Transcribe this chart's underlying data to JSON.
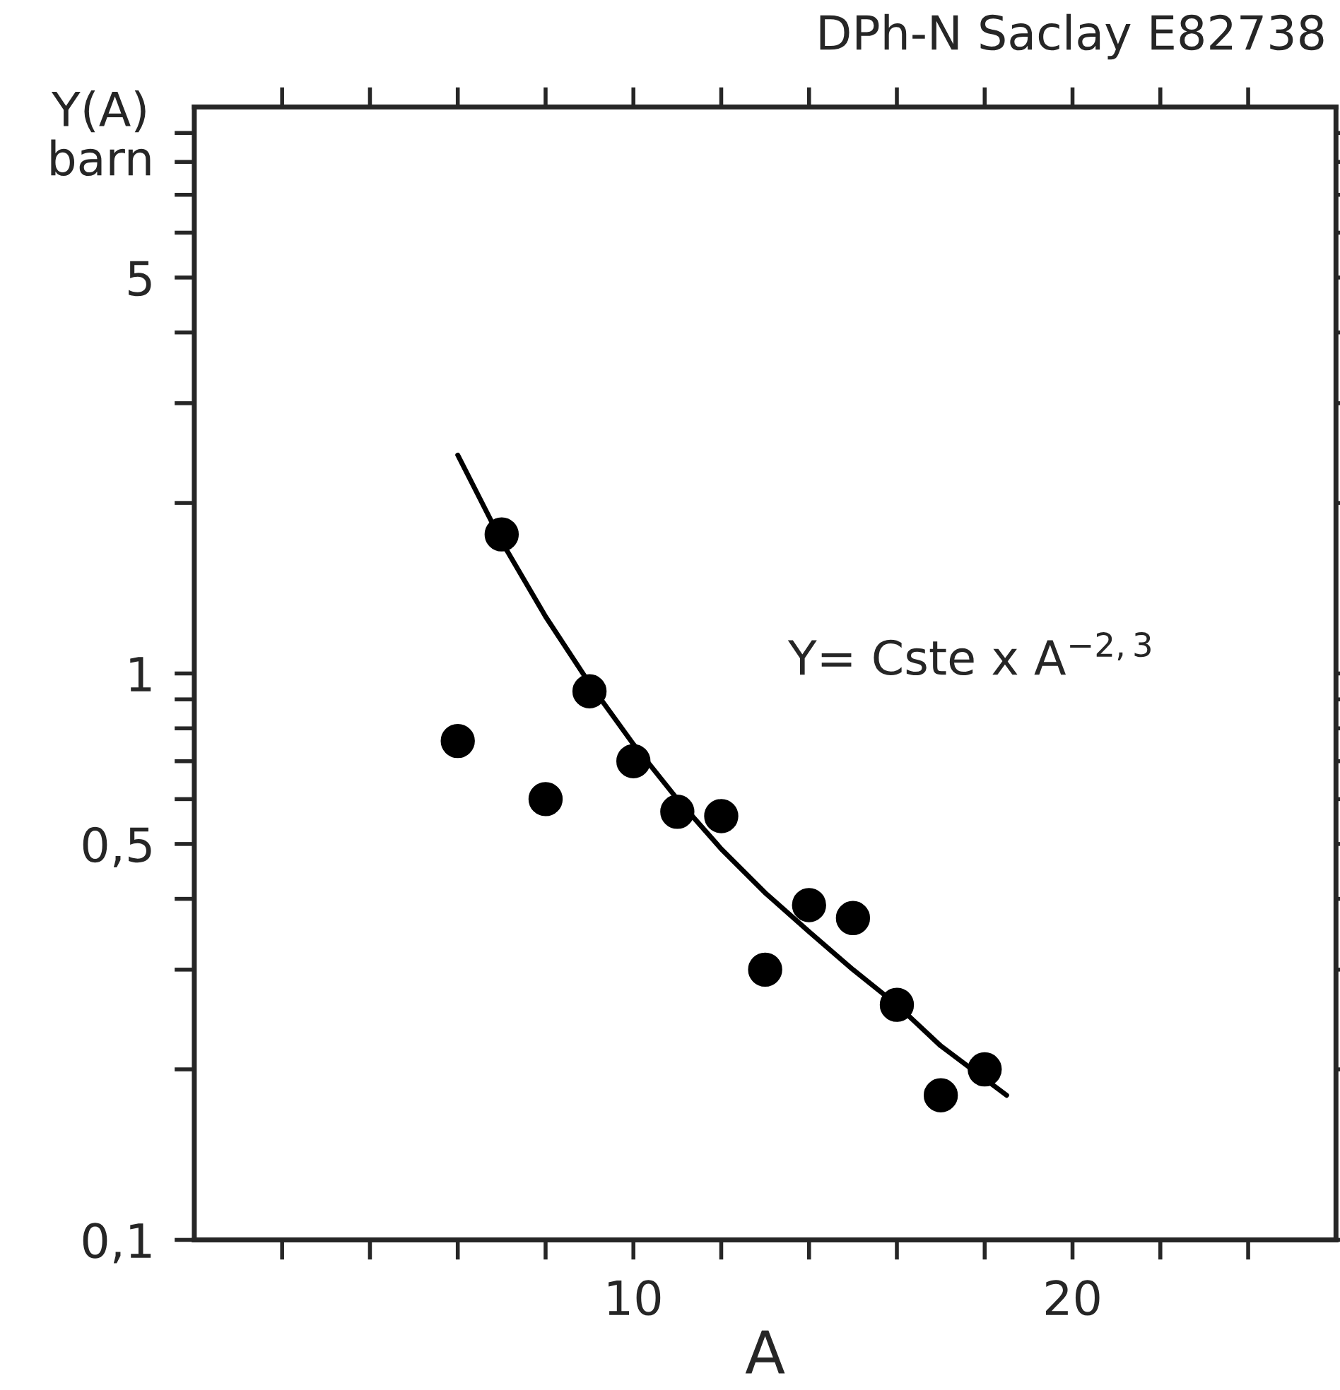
{
  "chart_data": {
    "type": "scatter",
    "xlabel": "A",
    "ylabel": "Y(A)\nbarn",
    "annotations": [
      "DPh-N Saclay E82738",
      "Y= Cste x A$^{−2,3}$"
    ],
    "log": "y",
    "grid": false,
    "marker": "circle",
    "xlim": [
      0,
      26
    ],
    "ylim": [
      0.1,
      10
    ],
    "xticks": [
      {
        "value": 2,
        "label": null
      },
      {
        "value": 4,
        "label": null
      },
      {
        "value": 6,
        "label": null
      },
      {
        "value": 8,
        "label": null
      },
      10,
      {
        "value": 12,
        "label": null
      },
      {
        "value": 14,
        "label": null
      },
      {
        "value": 16,
        "label": null
      },
      {
        "value": 18,
        "label": null
      },
      20,
      {
        "value": 22,
        "label": null
      },
      {
        "value": 24,
        "label": null
      }
    ],
    "yticks": [
      {
        "value": 0.1,
        "label": "0,1"
      },
      {
        "value": 0.2,
        "label": null
      },
      {
        "value": 0.3,
        "label": null
      },
      {
        "value": 0.4,
        "label": null
      },
      {
        "value": 0.5,
        "label": "0,5"
      },
      {
        "value": 0.6,
        "label": null
      },
      {
        "value": 0.7,
        "label": null
      },
      {
        "value": 0.8,
        "label": null
      },
      {
        "value": 0.9,
        "label": null
      },
      1,
      {
        "value": 2,
        "label": null
      },
      {
        "value": 3,
        "label": null
      },
      {
        "value": 4,
        "label": null
      },
      5,
      {
        "value": 6,
        "label": null
      },
      {
        "value": 7,
        "label": null
      },
      {
        "value": 8,
        "label": null
      },
      {
        "value": 9,
        "label": null
      }
    ],
    "series": [
      {
        "type": "scatter",
        "color": "#000000",
        "x": [
          6,
          7,
          8,
          9,
          10,
          11,
          12,
          13,
          14,
          15,
          16,
          17,
          18
        ],
        "values": [
          0.76,
          1.76,
          0.6,
          0.93,
          0.7,
          0.57,
          0.56,
          0.3,
          0.39,
          0.37,
          0.26,
          0.18,
          0.2
        ]
      },
      {
        "type": "line",
        "color": "#000000",
        "line_style": "solid",
        "marker": "none",
        "x": [
          6,
          7,
          8,
          9,
          10,
          11,
          12,
          13,
          14,
          15,
          16,
          17,
          18.5
        ],
        "values": [
          2.43,
          1.71,
          1.26,
          0.96,
          0.75,
          0.6,
          0.49,
          0.41,
          0.35,
          0.3,
          0.26,
          0.22,
          0.18
        ]
      }
    ]
  }
}
